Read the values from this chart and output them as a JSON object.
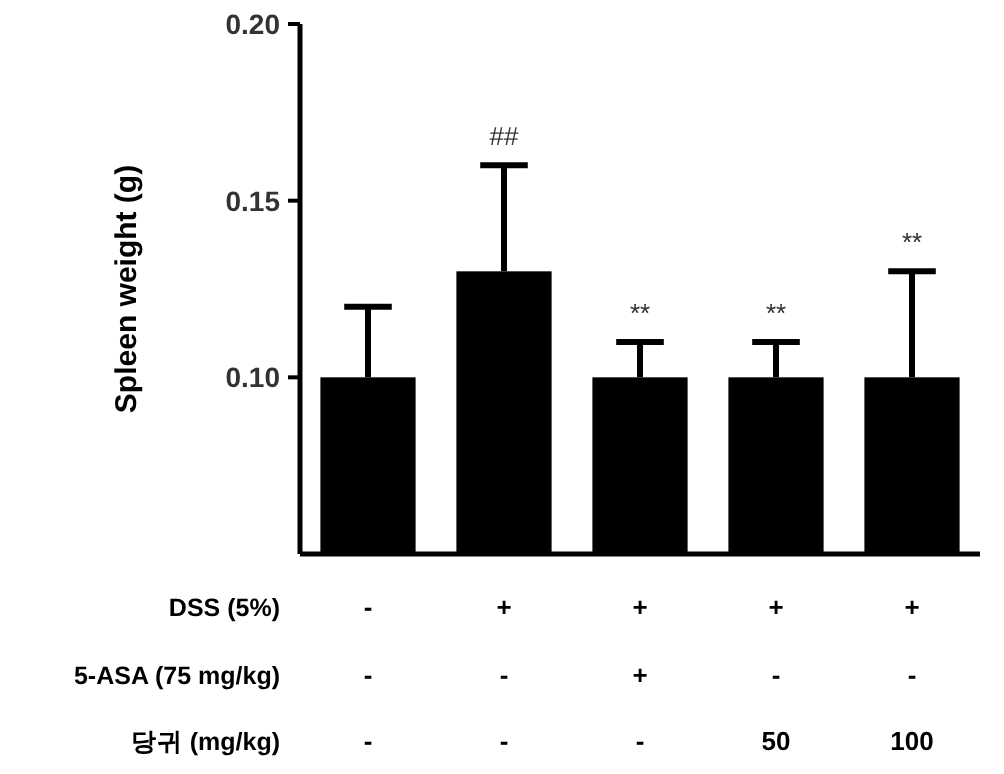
{
  "chart_data": {
    "type": "bar",
    "ylabel": "Spleen weight (g)",
    "categories": [
      null,
      null,
      null,
      null,
      null
    ],
    "values": [
      0.1,
      0.13,
      0.1,
      0.1,
      0.1
    ],
    "color": "#000000",
    "errors": [
      [
        0.1,
        0.12
      ],
      [
        0.13,
        0.16
      ],
      [
        0.1,
        0.11
      ],
      [
        0.1,
        0.11
      ],
      [
        0.1,
        0.13
      ]
    ],
    "ylim": [
      0.05,
      0.2
    ],
    "yticks": [
      {
        "value": 0.1,
        "label": "0.10"
      },
      {
        "value": 0.15,
        "label": "0.15"
      },
      {
        "value": 0.2,
        "label": "0.20"
      }
    ],
    "annotations": [
      "DSS (5%)",
      "5-ASA (75 mg/kg)",
      "당귀 (mg/kg)",
      "-",
      "+",
      "+",
      "+",
      "+",
      "-",
      "-",
      "+",
      "-",
      "-",
      "-",
      "-",
      "-",
      "50",
      "100",
      "##",
      "**",
      "**",
      "**"
    ]
  }
}
